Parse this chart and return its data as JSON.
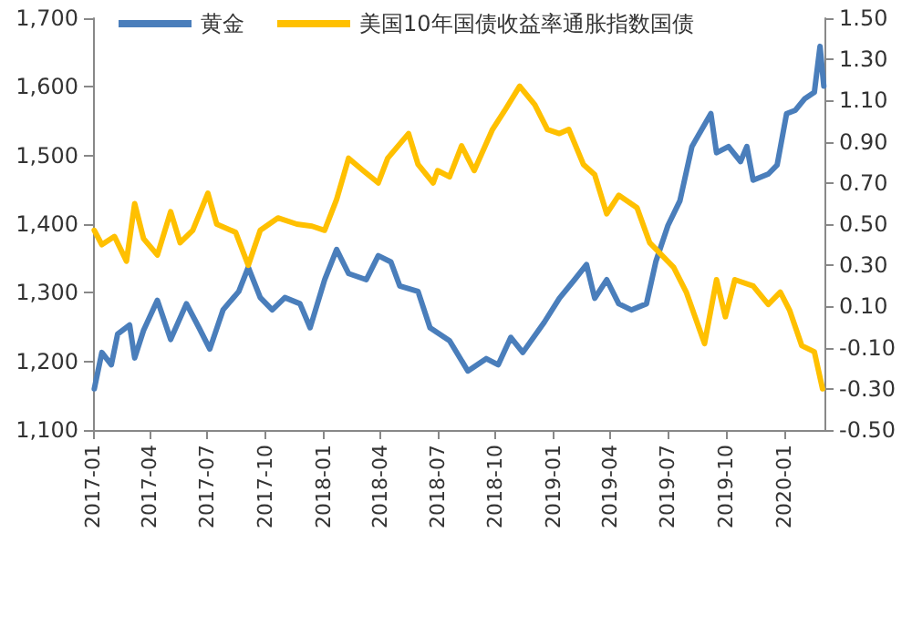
{
  "chart_data": {
    "type": "line",
    "legend": "top",
    "grid": false,
    "marker": "none",
    "line_style": "solid",
    "xlim": [
      "2017-01-01",
      "2020-03-05"
    ],
    "xticks": [
      {
        "value": "2017-01-01",
        "label": "2017-01"
      },
      {
        "value": "2017-04-01",
        "label": "2017-04"
      },
      {
        "value": "2017-07-01",
        "label": "2017-07"
      },
      {
        "value": "2017-10-01",
        "label": "2017-10"
      },
      {
        "value": "2018-01-01",
        "label": "2018-01"
      },
      {
        "value": "2018-04-01",
        "label": "2018-04"
      },
      {
        "value": "2018-07-01",
        "label": "2018-07"
      },
      {
        "value": "2018-10-01",
        "label": "2018-10"
      },
      {
        "value": "2019-01-01",
        "label": "2019-01"
      },
      {
        "value": "2019-04-01",
        "label": "2019-04"
      },
      {
        "value": "2019-07-01",
        "label": "2019-07"
      },
      {
        "value": "2019-10-01",
        "label": "2019-10"
      },
      {
        "value": "2020-01-01",
        "label": "2020-01"
      }
    ],
    "ylim": [
      1100,
      1700
    ],
    "yticks": [
      {
        "value": 1100,
        "label": "1,100"
      },
      {
        "value": 1200,
        "label": "1,200"
      },
      {
        "value": 1300,
        "label": "1,300"
      },
      {
        "value": 1400,
        "label": "1,400"
      },
      {
        "value": 1500,
        "label": "1,500"
      },
      {
        "value": 1600,
        "label": "1,600"
      },
      {
        "value": 1700,
        "label": "1,700"
      }
    ],
    "y2lim": [
      -0.5,
      1.5
    ],
    "y2ticks": [
      {
        "value": -0.5,
        "label": "-0.50"
      },
      {
        "value": -0.3,
        "label": "-0.30"
      },
      {
        "value": -0.1,
        "label": "-0.10"
      },
      {
        "value": 0.1,
        "label": "0.10"
      },
      {
        "value": 0.3,
        "label": "0.30"
      },
      {
        "value": 0.5,
        "label": "0.50"
      },
      {
        "value": 0.7,
        "label": "0.70"
      },
      {
        "value": 0.9,
        "label": "0.90"
      },
      {
        "value": 1.1,
        "label": "1.10"
      },
      {
        "value": 1.3,
        "label": "1.30"
      },
      {
        "value": 1.5,
        "label": "1.50"
      }
    ],
    "series": [
      {
        "name": "黄金",
        "color": "#4a7ebb",
        "x": [
          "2017-01-03",
          "2017-01-15",
          "2017-01-30",
          "2017-02-09",
          "2017-02-28",
          "2017-03-08",
          "2017-03-22",
          "2017-04-13",
          "2017-05-04",
          "2017-05-29",
          "2017-06-18",
          "2017-07-05",
          "2017-07-26",
          "2017-08-20",
          "2017-09-04",
          "2017-09-23",
          "2017-10-12",
          "2017-11-01",
          "2017-11-25",
          "2017-12-11",
          "2018-01-03",
          "2018-01-22",
          "2018-02-10",
          "2018-03-10",
          "2018-03-29",
          "2018-04-18",
          "2018-05-02",
          "2018-05-31",
          "2018-06-19",
          "2018-07-20",
          "2018-08-18",
          "2018-09-16",
          "2018-10-05",
          "2018-10-25",
          "2018-11-13",
          "2018-12-17",
          "2019-01-10",
          "2019-02-03",
          "2019-02-22",
          "2019-03-07",
          "2019-03-26",
          "2019-04-14",
          "2019-05-04",
          "2019-05-28",
          "2019-06-12",
          "2019-07-01",
          "2019-07-20",
          "2019-08-08",
          "2019-09-07",
          "2019-09-16",
          "2019-10-05",
          "2019-10-24",
          "2019-11-03",
          "2019-11-13",
          "2019-12-07",
          "2019-12-21",
          "2020-01-05",
          "2020-01-19",
          "2020-02-03",
          "2020-02-18",
          "2020-02-27",
          "2020-03-04"
        ],
        "values": [
          1160,
          1213,
          1195,
          1240,
          1253,
          1205,
          1245,
          1289,
          1232,
          1284,
          1249,
          1218,
          1275,
          1302,
          1337,
          1293,
          1275,
          1293,
          1284,
          1249,
          1319,
          1363,
          1328,
          1319,
          1354,
          1345,
          1310,
          1302,
          1249,
          1230,
          1186,
          1204,
          1195,
          1235,
          1213,
          1257,
          1292,
          1319,
          1341,
          1292,
          1319,
          1284,
          1275,
          1284,
          1346,
          1398,
          1434,
          1513,
          1561,
          1504,
          1513,
          1491,
          1513,
          1464,
          1473,
          1486,
          1561,
          1566,
          1583,
          1592,
          1659,
          1601
        ]
      },
      {
        "name": "美国10年国债收益率通胀指数国债",
        "color": "#ffc000",
        "axis": "y2",
        "x": [
          "2017-01-03",
          "2017-01-15",
          "2017-02-04",
          "2017-02-23",
          "2017-03-08",
          "2017-03-22",
          "2017-04-13",
          "2017-05-04",
          "2017-05-19",
          "2017-06-08",
          "2017-07-02",
          "2017-07-16",
          "2017-08-15",
          "2017-09-04",
          "2017-09-23",
          "2017-10-21",
          "2017-11-20",
          "2017-12-14",
          "2018-01-03",
          "2018-01-22",
          "2018-02-10",
          "2018-03-05",
          "2018-03-29",
          "2018-04-13",
          "2018-05-16",
          "2018-05-31",
          "2018-06-24",
          "2018-07-01",
          "2018-07-20",
          "2018-08-08",
          "2018-08-28",
          "2018-09-26",
          "2018-10-15",
          "2018-11-08",
          "2018-12-02",
          "2018-12-22",
          "2019-01-10",
          "2019-01-25",
          "2019-02-17",
          "2019-03-07",
          "2019-03-26",
          "2019-04-14",
          "2019-05-13",
          "2019-06-02",
          "2019-06-21",
          "2019-07-10",
          "2019-07-30",
          "2019-08-28",
          "2019-09-16",
          "2019-09-30",
          "2019-10-15",
          "2019-11-13",
          "2019-12-07",
          "2019-12-26",
          "2020-01-10",
          "2020-01-29",
          "2020-02-18",
          "2020-03-02"
        ],
        "values": [
          0.47,
          0.4,
          0.44,
          0.32,
          0.6,
          0.43,
          0.35,
          0.56,
          0.41,
          0.47,
          0.65,
          0.5,
          0.46,
          0.3,
          0.47,
          0.53,
          0.5,
          0.49,
          0.47,
          0.62,
          0.82,
          0.76,
          0.7,
          0.82,
          0.94,
          0.79,
          0.7,
          0.76,
          0.73,
          0.88,
          0.76,
          0.96,
          1.05,
          1.17,
          1.08,
          0.96,
          0.94,
          0.96,
          0.79,
          0.74,
          0.55,
          0.64,
          0.58,
          0.41,
          0.35,
          0.29,
          0.17,
          -0.08,
          0.23,
          0.05,
          0.23,
          0.2,
          0.11,
          0.17,
          0.08,
          -0.09,
          -0.12,
          -0.3
        ]
      }
    ]
  }
}
